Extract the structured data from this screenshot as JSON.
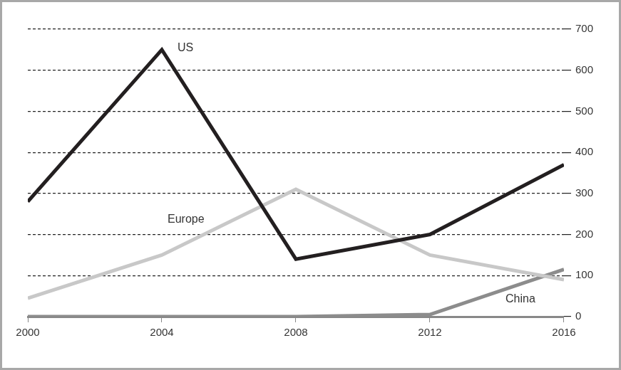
{
  "chart_data": {
    "type": "line",
    "categories": [
      "2000",
      "2004",
      "2008",
      "2012",
      "2016"
    ],
    "series": [
      {
        "name": "US",
        "color": "#231f20",
        "values": [
          280,
          650,
          140,
          200,
          370
        ]
      },
      {
        "name": "Europe",
        "color": "#c8c8c8",
        "values": [
          45,
          150,
          310,
          150,
          90
        ]
      },
      {
        "name": "China",
        "color": "#8c8c8c",
        "values": [
          0,
          0,
          0,
          5,
          115
        ]
      }
    ],
    "ylim": [
      0,
      700
    ],
    "yticks": [
      0,
      100,
      200,
      300,
      400,
      500,
      600,
      700
    ],
    "grid": true
  }
}
